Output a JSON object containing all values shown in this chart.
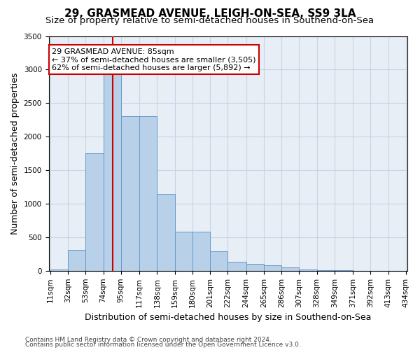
{
  "title": "29, GRASMEAD AVENUE, LEIGH-ON-SEA, SS9 3LA",
  "subtitle": "Size of property relative to semi-detached houses in Southend-on-Sea",
  "xlabel": "Distribution of semi-detached houses by size in Southend-on-Sea",
  "ylabel": "Number of semi-detached properties",
  "footnote1": "Contains HM Land Registry data © Crown copyright and database right 2024.",
  "footnote2": "Contains public sector information licensed under the Open Government Licence v3.0.",
  "annotation_line1": "29 GRASMEAD AVENUE: 85sqm",
  "annotation_line2": "← 37% of semi-detached houses are smaller (3,505)",
  "annotation_line3": "62% of semi-detached houses are larger (5,892) →",
  "bin_edges": [
    11,
    32,
    53,
    74,
    95,
    117,
    138,
    159,
    180,
    201,
    222,
    244,
    265,
    286,
    307,
    328,
    349,
    371,
    392,
    413,
    434
  ],
  "bin_labels": [
    "11sqm",
    "32sqm",
    "53sqm",
    "74sqm",
    "95sqm",
    "117sqm",
    "138sqm",
    "159sqm",
    "180sqm",
    "201sqm",
    "222sqm",
    "244sqm",
    "265sqm",
    "286sqm",
    "307sqm",
    "328sqm",
    "349sqm",
    "371sqm",
    "392sqm",
    "413sqm",
    "434sqm"
  ],
  "bar_values": [
    18,
    310,
    1750,
    3350,
    2300,
    2300,
    1150,
    580,
    580,
    290,
    130,
    100,
    80,
    50,
    20,
    10,
    5,
    2,
    1,
    0
  ],
  "bar_color": "#b8d0e8",
  "bar_edge_color": "#6699cc",
  "grid_color": "#c8d4e4",
  "background_color": "#e8eef6",
  "vline_color": "#cc0000",
  "vline_x": 85,
  "ylim": [
    0,
    3500
  ],
  "yticks": [
    0,
    500,
    1000,
    1500,
    2000,
    2500,
    3000,
    3500
  ],
  "annotation_box_color": "#cc0000",
  "title_fontsize": 11,
  "subtitle_fontsize": 9.5,
  "ylabel_fontsize": 9,
  "xlabel_fontsize": 9,
  "tick_fontsize": 7.5,
  "annotation_fontsize": 8
}
